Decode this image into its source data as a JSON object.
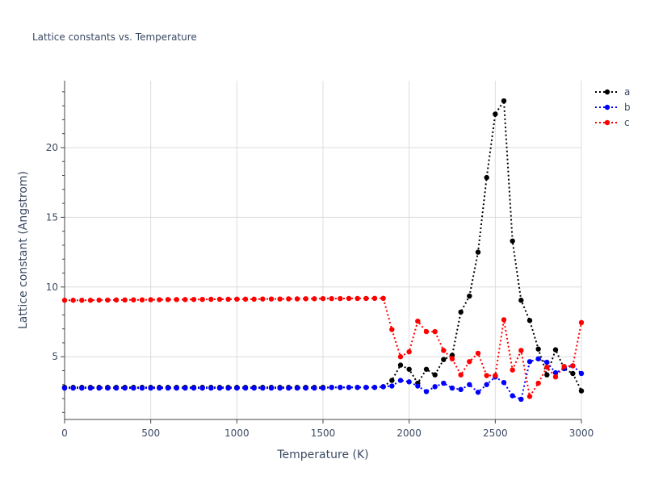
{
  "chart_data": {
    "type": "line",
    "title": "Lattice constants vs. Temperature",
    "xlabel": "Temperature (K)",
    "ylabel": "Lattice constant (Angstrom)",
    "xlim": [
      0,
      3000
    ],
    "ylim": [
      0.5,
      24.8
    ],
    "xticks": [
      0,
      500,
      1000,
      1500,
      2000,
      2500,
      3000
    ],
    "yticks": [
      5,
      10,
      15,
      20
    ],
    "grid": true,
    "legend_position": "top-right",
    "line_style": "dotted with circle markers",
    "x": [
      0,
      50,
      100,
      150,
      200,
      250,
      300,
      350,
      400,
      450,
      500,
      550,
      600,
      650,
      700,
      750,
      800,
      850,
      900,
      950,
      1000,
      1050,
      1100,
      1150,
      1200,
      1250,
      1300,
      1350,
      1400,
      1450,
      1500,
      1550,
      1600,
      1650,
      1700,
      1750,
      1800,
      1850,
      1900,
      1950,
      2000,
      2050,
      2100,
      2150,
      2200,
      2250,
      2300,
      2350,
      2400,
      2450,
      2500,
      2550,
      2600,
      2650,
      2700,
      2750,
      2800,
      2850,
      2900,
      2950,
      3000
    ],
    "series": [
      {
        "name": "a",
        "color": "#000000",
        "values": [
          2.8,
          2.8,
          2.8,
          2.8,
          2.8,
          2.8,
          2.8,
          2.8,
          2.8,
          2.8,
          2.8,
          2.8,
          2.8,
          2.8,
          2.8,
          2.8,
          2.8,
          2.8,
          2.8,
          2.8,
          2.8,
          2.8,
          2.8,
          2.8,
          2.8,
          2.8,
          2.8,
          2.8,
          2.8,
          2.8,
          2.8,
          2.8,
          2.8,
          2.8,
          2.8,
          2.8,
          2.8,
          2.85,
          3.3,
          4.4,
          4.1,
          3.1,
          4.1,
          3.7,
          4.8,
          5.1,
          8.2,
          9.35,
          12.5,
          17.85,
          22.4,
          23.35,
          13.3,
          9.05,
          7.6,
          5.55,
          3.7,
          5.5,
          4.15,
          3.8,
          2.55
        ]
      },
      {
        "name": "b",
        "color": "#0000ff",
        "values": [
          2.75,
          2.75,
          2.75,
          2.75,
          2.75,
          2.75,
          2.75,
          2.75,
          2.75,
          2.75,
          2.75,
          2.75,
          2.75,
          2.75,
          2.75,
          2.75,
          2.75,
          2.75,
          2.75,
          2.75,
          2.75,
          2.75,
          2.75,
          2.75,
          2.75,
          2.75,
          2.75,
          2.75,
          2.75,
          2.75,
          2.75,
          2.8,
          2.8,
          2.8,
          2.8,
          2.8,
          2.8,
          2.85,
          2.9,
          3.3,
          3.2,
          2.9,
          2.5,
          2.85,
          3.1,
          2.75,
          2.65,
          3.0,
          2.45,
          3.0,
          3.55,
          3.15,
          2.2,
          1.95,
          4.65,
          4.85,
          4.6,
          3.85,
          4.15,
          4.35,
          3.8
        ]
      },
      {
        "name": "c",
        "color": "#ff0000",
        "values": [
          9.05,
          9.05,
          9.05,
          9.05,
          9.06,
          9.06,
          9.07,
          9.07,
          9.08,
          9.08,
          9.09,
          9.09,
          9.1,
          9.1,
          9.1,
          9.11,
          9.11,
          9.12,
          9.12,
          9.12,
          9.13,
          9.13,
          9.13,
          9.14,
          9.14,
          9.14,
          9.15,
          9.15,
          9.16,
          9.16,
          9.17,
          9.17,
          9.17,
          9.18,
          9.18,
          9.18,
          9.19,
          9.19,
          6.95,
          5.0,
          5.35,
          7.55,
          6.8,
          6.8,
          5.45,
          4.85,
          3.7,
          4.65,
          5.25,
          3.65,
          3.65,
          7.65,
          4.05,
          5.45,
          2.15,
          3.1,
          4.25,
          3.55,
          4.3,
          4.35,
          7.45
        ]
      }
    ]
  }
}
